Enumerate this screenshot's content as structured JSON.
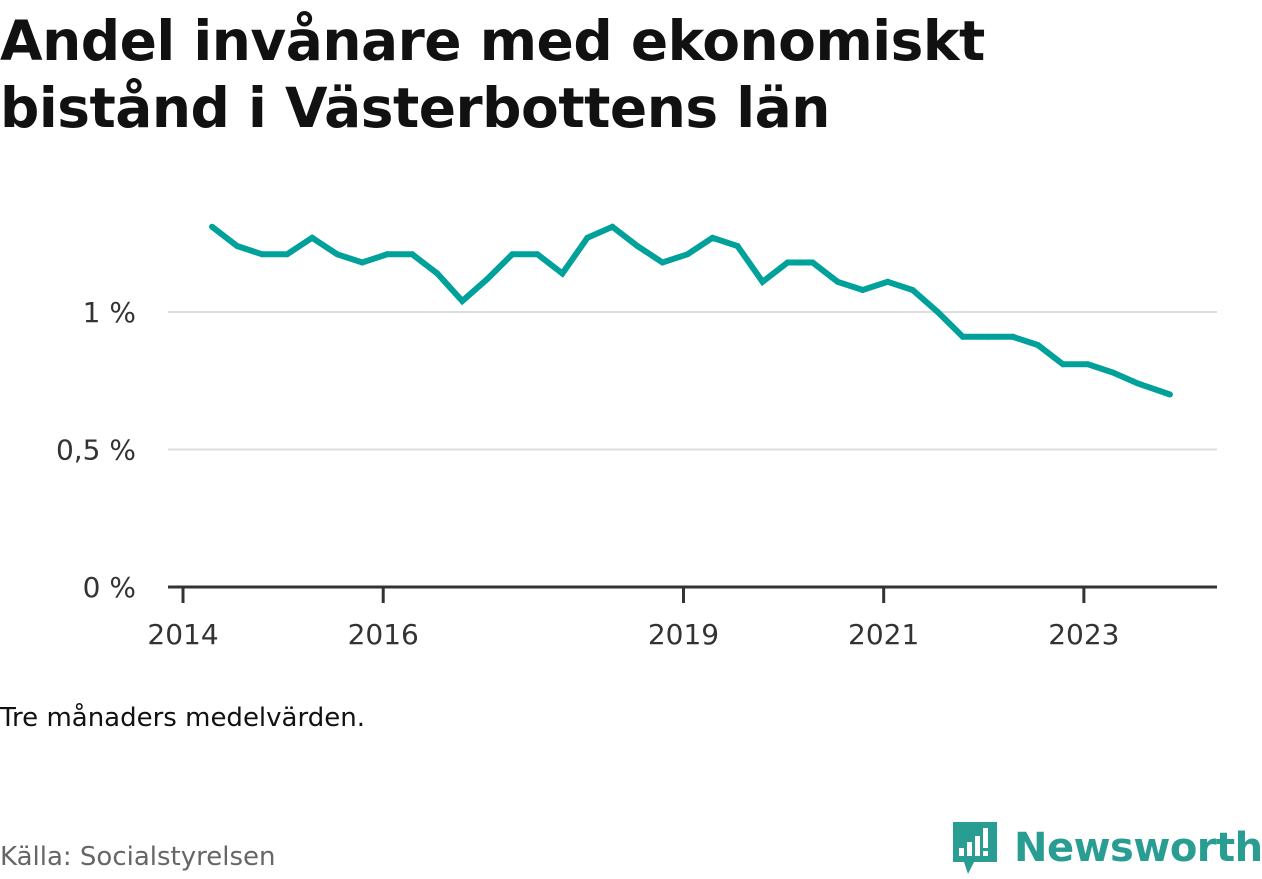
{
  "title_lines": [
    "Andel invånare med ekonomiskt",
    "bistånd i Västerbottens län"
  ],
  "note": "Tre månaders medelvärden.",
  "source": "Källa: Socialstyrelsen",
  "brand": {
    "name": "Newsworthy",
    "icon": "bar-chart-logo-icon",
    "color": "#2a9d92"
  },
  "colors": {
    "line": "#00a19a",
    "grid": "#dddddd",
    "axis": "#333333"
  },
  "chart_data": {
    "type": "line",
    "title": "Andel invånare med ekonomiskt bistånd i Västerbottens län",
    "xlabel": "",
    "ylabel": "",
    "ylim": [
      0,
      1.4
    ],
    "grid": true,
    "yticks": [
      {
        "value": 0,
        "label": "0 %"
      },
      {
        "value": 0.5,
        "label": "0,5 %"
      },
      {
        "value": 1,
        "label": "1 %"
      }
    ],
    "xticks": [
      {
        "value": 2014.0,
        "label": "2014"
      },
      {
        "value": 2016.0,
        "label": "2016"
      },
      {
        "value": 2019.0,
        "label": "2019"
      },
      {
        "value": 2021.0,
        "label": "2021"
      },
      {
        "value": 2023.0,
        "label": "2023"
      }
    ],
    "xlim": [
      2013.85,
      2024.33
    ],
    "series": [
      {
        "values": [
          {
            "x": 2014.29,
            "y": 1.31
          },
          {
            "x": 2014.54,
            "y": 1.24
          },
          {
            "x": 2014.79,
            "y": 1.21
          },
          {
            "x": 2015.04,
            "y": 1.21
          },
          {
            "x": 2015.29,
            "y": 1.27
          },
          {
            "x": 2015.54,
            "y": 1.21
          },
          {
            "x": 2015.79,
            "y": 1.18
          },
          {
            "x": 2016.04,
            "y": 1.21
          },
          {
            "x": 2016.29,
            "y": 1.21
          },
          {
            "x": 2016.54,
            "y": 1.14
          },
          {
            "x": 2016.79,
            "y": 1.04
          },
          {
            "x": 2017.04,
            "y": 1.12
          },
          {
            "x": 2017.29,
            "y": 1.21
          },
          {
            "x": 2017.54,
            "y": 1.21
          },
          {
            "x": 2017.79,
            "y": 1.14
          },
          {
            "x": 2018.04,
            "y": 1.27
          },
          {
            "x": 2018.29,
            "y": 1.31
          },
          {
            "x": 2018.54,
            "y": 1.24
          },
          {
            "x": 2018.79,
            "y": 1.18
          },
          {
            "x": 2019.04,
            "y": 1.21
          },
          {
            "x": 2019.29,
            "y": 1.27
          },
          {
            "x": 2019.54,
            "y": 1.24
          },
          {
            "x": 2019.79,
            "y": 1.11
          },
          {
            "x": 2020.04,
            "y": 1.18
          },
          {
            "x": 2020.29,
            "y": 1.18
          },
          {
            "x": 2020.54,
            "y": 1.11
          },
          {
            "x": 2020.79,
            "y": 1.08
          },
          {
            "x": 2021.04,
            "y": 1.11
          },
          {
            "x": 2021.29,
            "y": 1.08
          },
          {
            "x": 2021.54,
            "y": 1.0
          },
          {
            "x": 2021.79,
            "y": 0.91
          },
          {
            "x": 2022.04,
            "y": 0.91
          },
          {
            "x": 2022.29,
            "y": 0.91
          },
          {
            "x": 2022.54,
            "y": 0.88
          },
          {
            "x": 2022.79,
            "y": 0.81
          },
          {
            "x": 2023.04,
            "y": 0.81
          },
          {
            "x": 2023.29,
            "y": 0.78
          },
          {
            "x": 2023.54,
            "y": 0.74
          },
          {
            "x": 2023.86,
            "y": 0.7
          }
        ]
      }
    ]
  }
}
